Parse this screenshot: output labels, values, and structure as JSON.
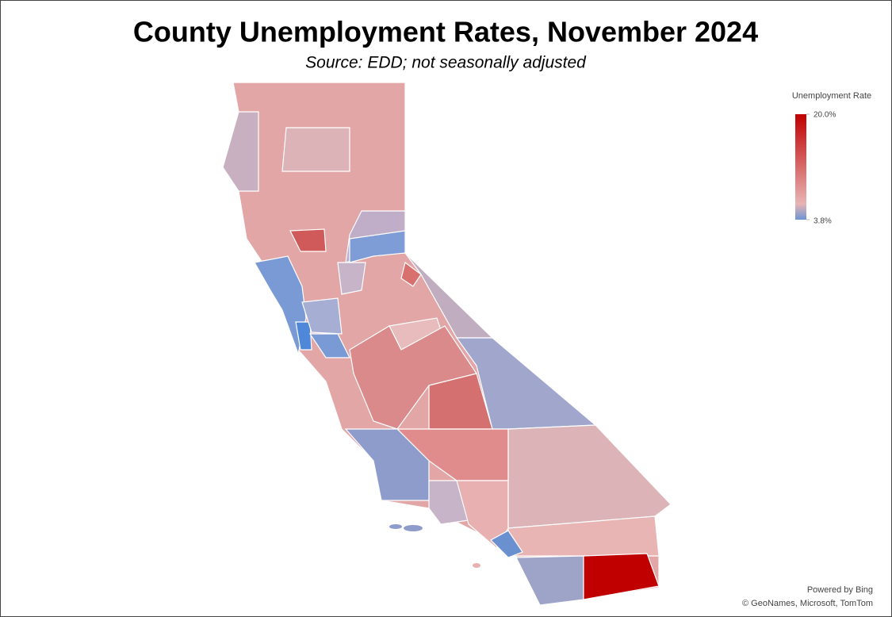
{
  "title": "County Unemployment Rates, November 2024",
  "subtitle": "Source:  EDD; not seasonally adjusted",
  "legend": {
    "title": "Unemployment Rate",
    "lim": [
      3.8,
      20.0
    ],
    "low_color": "#6b95d6",
    "mid_color": "#e8b4b4",
    "high_color": "#c00000",
    "ticks": [
      {
        "value": 20.0,
        "label": "20.0%"
      },
      {
        "value": 3.8,
        "label": "3.8%"
      }
    ]
  },
  "attribution": [
    "Powered by Bing",
    "© GeoNames, Microsoft, TomTom"
  ]
}
